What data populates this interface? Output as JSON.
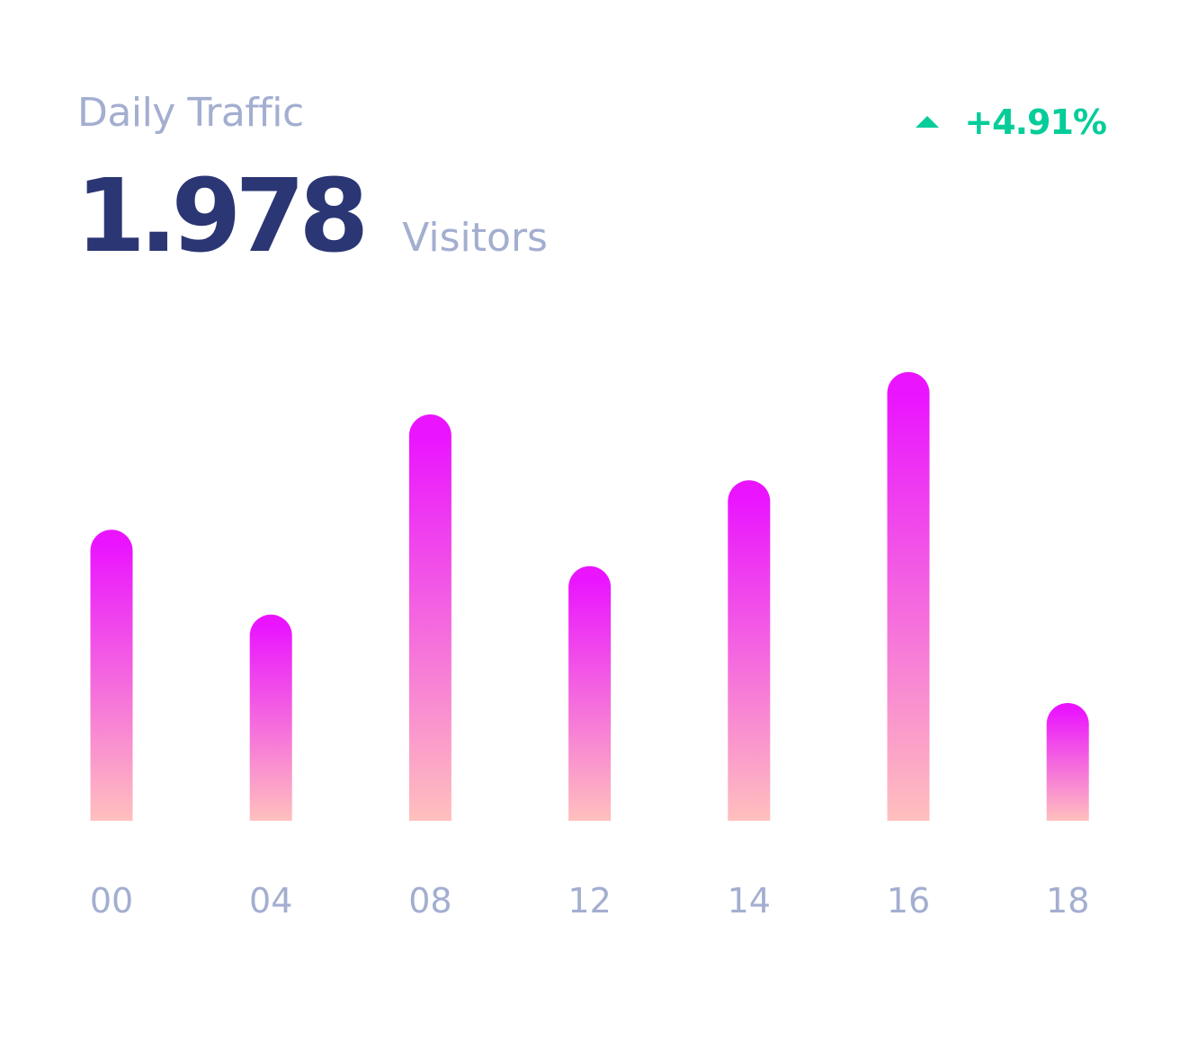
{
  "widget": {
    "title": "Daily Traffic",
    "value": "1.978",
    "unit": "Visitors",
    "trend": {
      "icon": "arrow-up-icon",
      "value": "+4.91%",
      "color": "#05CD99"
    }
  },
  "colors": {
    "bar_top": "#EA14FF",
    "bar_bottom": "#FFC0BD",
    "text_muted": "#A3AED0",
    "text_primary": "#2B3674"
  },
  "chart_data": {
    "type": "bar",
    "categories": [
      "00",
      "04",
      "08",
      "12",
      "14",
      "16",
      "18"
    ],
    "values": [
      336,
      238,
      469,
      294,
      393,
      518,
      136
    ],
    "title": "",
    "xlabel": "",
    "ylabel": "",
    "ylim": [
      0,
      550
    ],
    "grid": false,
    "legend": "none"
  }
}
